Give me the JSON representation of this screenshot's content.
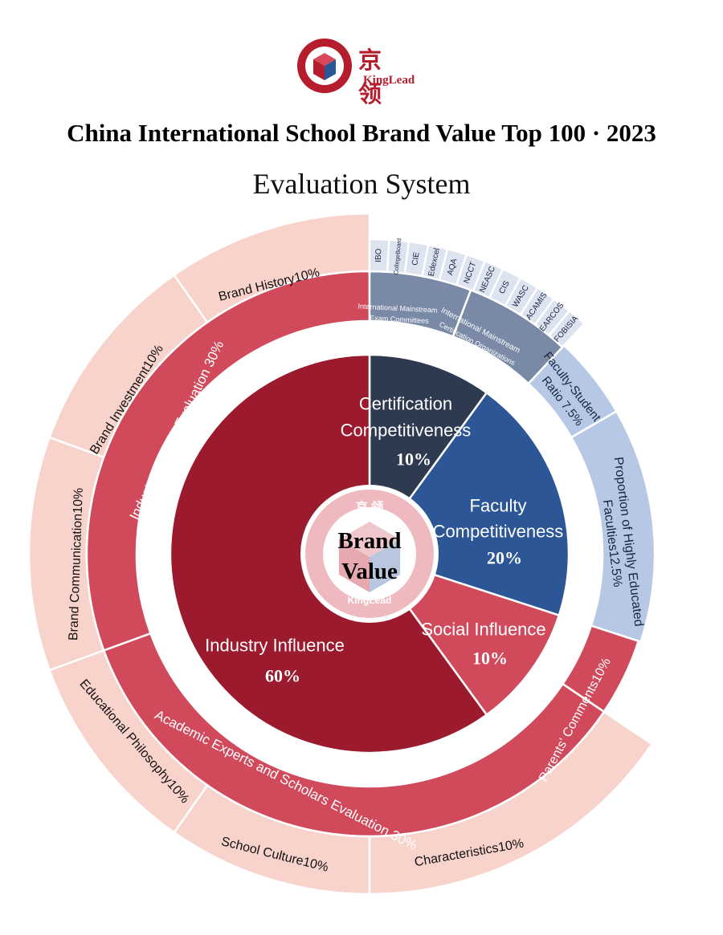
{
  "logo": {
    "cn": "京 领",
    "en": "KingLead",
    "ring_cn": "京 领",
    "ring_en": "KingLead"
  },
  "title": "China International School Brand Value Top 100 · 2023",
  "subtitle": "Evaluation System",
  "center": {
    "line1": "Brand",
    "line2": "Value",
    "watermark_cn": "京 领",
    "watermark_en": "KingLead"
  },
  "core": [
    {
      "id": "certification",
      "label1": "Certification",
      "label2": "Competitiveness",
      "percent": "10%",
      "weight": 10,
      "color": "#2e3a4f"
    },
    {
      "id": "faculty",
      "label1": "Faculty",
      "label2": "Competitiveness",
      "percent": "20%",
      "weight": 20,
      "color": "#2c5696"
    },
    {
      "id": "social",
      "label1": "Social Influence",
      "label2": "",
      "percent": "10%",
      "weight": 10,
      "color": "#d04a5c"
    },
    {
      "id": "industry",
      "label1": "Industry Influence",
      "label2": "",
      "percent": "60%",
      "weight": 60,
      "color": "#9b1a2d"
    }
  ],
  "middle": [
    {
      "id": "exam-committees",
      "line1": "International Mainstream",
      "line2": "Exam Committees"
    },
    {
      "id": "certification-organizations",
      "line1": "International Mainstream",
      "line2": "Certification Organizations"
    },
    {
      "id": "faculty-student-ratio",
      "line1": "Faculty-Student",
      "line2": "Ratio 7.5%"
    },
    {
      "id": "highly-educated",
      "line1": "Proportion of Highly Educated",
      "line2": "Faculties12.5%"
    },
    {
      "id": "parents-comments",
      "line1": "Parents' Comments10%",
      "line2": ""
    },
    {
      "id": "academic-experts",
      "line1": "Academic Experts and Scholars Evaluation 30%",
      "line2": ""
    },
    {
      "id": "industry-experts",
      "line1": "Industry Experts Evaluation 30%",
      "line2": ""
    }
  ],
  "outer": [
    {
      "id": "characteristics",
      "label": "Characteristics10%"
    },
    {
      "id": "school-culture",
      "label": "School Culture10%"
    },
    {
      "id": "educational-philosophy",
      "label": "Educational Philosophy10%"
    },
    {
      "id": "brand-communication",
      "label": "Brand Communication10%"
    },
    {
      "id": "brand-investment",
      "label": "Brand Investment10%"
    },
    {
      "id": "brand-history",
      "label": "Brand History10%"
    }
  ],
  "organizations": [
    "IBO",
    "CollegeBoard",
    "CIE",
    "Edexcel",
    "AQA",
    "NCCT",
    "NEASC",
    "CIS",
    "WASC",
    "ACAMIS",
    "EARCOS",
    "FOBISIA"
  ],
  "colors": {
    "logo_red": "#b51d2c",
    "certification": "#2e3a4f",
    "faculty": "#2c5696",
    "social": "#d04a5c",
    "industry": "#9b1a2d",
    "middle_red": "#d04a5c",
    "middle_grey_blue": "#7a8aa6",
    "middle_light_blue": "#b7c8e6",
    "outer_pink": "#f8d3cb",
    "org_box": "#dde3ef"
  }
}
